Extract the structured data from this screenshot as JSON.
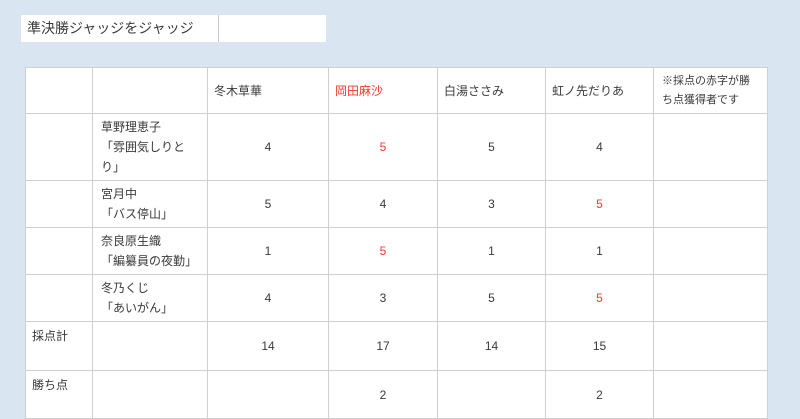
{
  "colors": {
    "page_background": "#d9e6f2",
    "cell_background": "#ffffff",
    "grid_line": "#cfcfcf",
    "text": "#3a3a3a",
    "red_text": "#f23a2e"
  },
  "title_bar": {
    "title": "準決勝ジャッジをジャッジ"
  },
  "table": {
    "columns": [
      {
        "label": ""
      },
      {
        "label": ""
      },
      {
        "label": "冬木草華"
      },
      {
        "label": "岡田麻沙",
        "red": true
      },
      {
        "label": "白湯ささみ"
      },
      {
        "label": "虹ノ先だりあ"
      },
      {
        "label": "※採点の赤字が勝ち点獲得者です",
        "note": true
      }
    ],
    "rows": [
      {
        "cells": [
          {
            "kind": "rowlabel",
            "text": ""
          },
          {
            "kind": "name",
            "text": "草野理恵子",
            "text2": "「雰囲気しりとり」"
          },
          {
            "kind": "score",
            "text": "4"
          },
          {
            "kind": "score",
            "text": "5",
            "red": true
          },
          {
            "kind": "score",
            "text": "5"
          },
          {
            "kind": "score",
            "text": "4"
          },
          {
            "kind": "blank",
            "text": ""
          }
        ]
      },
      {
        "cells": [
          {
            "kind": "rowlabel",
            "text": ""
          },
          {
            "kind": "name",
            "text": "宮月中",
            "text2": "「バス停山」"
          },
          {
            "kind": "score",
            "text": "5"
          },
          {
            "kind": "score",
            "text": "4"
          },
          {
            "kind": "score",
            "text": "3"
          },
          {
            "kind": "score",
            "text": "5",
            "red": true
          },
          {
            "kind": "blank",
            "text": ""
          }
        ]
      },
      {
        "cells": [
          {
            "kind": "rowlabel",
            "text": ""
          },
          {
            "kind": "name",
            "text": "奈良原生織",
            "text2": "「編纂員の夜勤」"
          },
          {
            "kind": "score",
            "text": "1"
          },
          {
            "kind": "score",
            "text": "5",
            "red": true
          },
          {
            "kind": "score",
            "text": "1"
          },
          {
            "kind": "score",
            "text": "1"
          },
          {
            "kind": "blank",
            "text": ""
          }
        ]
      },
      {
        "cells": [
          {
            "kind": "rowlabel",
            "text": ""
          },
          {
            "kind": "name",
            "text": "冬乃くじ",
            "text2": "「あいがん」"
          },
          {
            "kind": "score",
            "text": "4"
          },
          {
            "kind": "score",
            "text": "3"
          },
          {
            "kind": "score",
            "text": "5"
          },
          {
            "kind": "score",
            "text": "5",
            "red": true
          },
          {
            "kind": "blank",
            "text": ""
          }
        ]
      },
      {
        "cells": [
          {
            "kind": "rowlabel",
            "text": "採点計"
          },
          {
            "kind": "name",
            "text": "",
            "text2": ""
          },
          {
            "kind": "score",
            "text": "14"
          },
          {
            "kind": "score",
            "text": "17"
          },
          {
            "kind": "score",
            "text": "14"
          },
          {
            "kind": "score",
            "text": "15"
          },
          {
            "kind": "blank",
            "text": ""
          }
        ]
      },
      {
        "cells": [
          {
            "kind": "rowlabel",
            "text": "勝ち点"
          },
          {
            "kind": "name",
            "text": "",
            "text2": ""
          },
          {
            "kind": "score",
            "text": ""
          },
          {
            "kind": "score",
            "text": "2"
          },
          {
            "kind": "score",
            "text": ""
          },
          {
            "kind": "score",
            "text": "2"
          },
          {
            "kind": "blank",
            "text": ""
          }
        ]
      }
    ]
  }
}
